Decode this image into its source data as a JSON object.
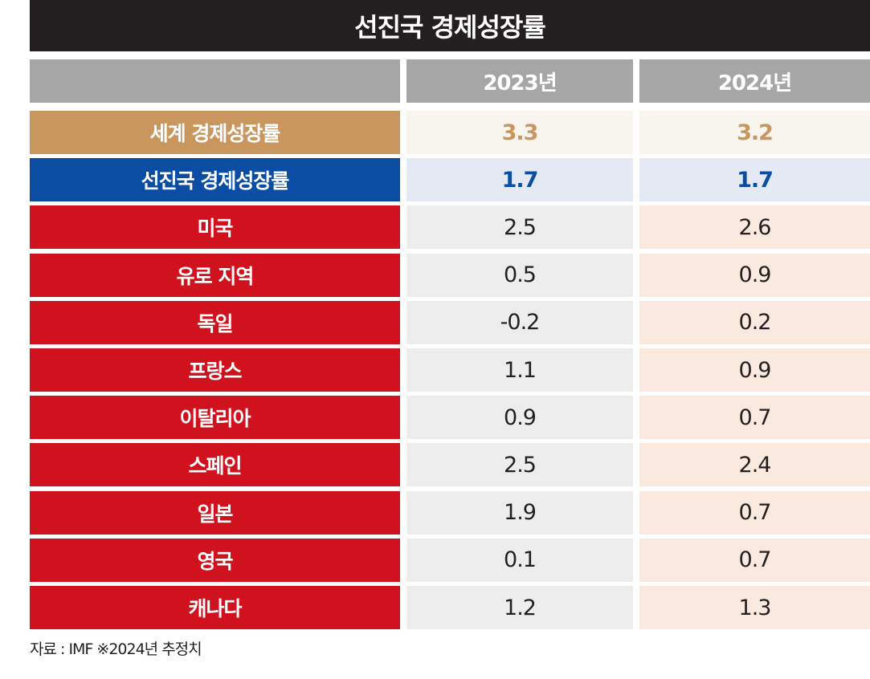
{
  "title": "선진국 경제성장률",
  "source": "자료 : IMF ※2024년 추정치",
  "colors": {
    "title_bg": "#231f20",
    "header_bg": "#a6a6a6",
    "world": "#c9965e",
    "advanced": "#0b4da2",
    "country": "#d0121e"
  },
  "chart_data": {
    "type": "table",
    "title": "선진국 경제성장률",
    "columns": [
      "2023년",
      "2024년"
    ],
    "rows": [
      {
        "label": "세계 경제성장률",
        "group": "world",
        "values": [
          "3.3",
          "3.2"
        ]
      },
      {
        "label": "선진국 경제성장률",
        "group": "advanced",
        "values": [
          "1.7",
          "1.7"
        ]
      },
      {
        "label": "미국",
        "group": "country",
        "values": [
          "2.5",
          "2.6"
        ]
      },
      {
        "label": "유로 지역",
        "group": "country",
        "values": [
          "0.5",
          "0.9"
        ]
      },
      {
        "label": "독일",
        "group": "country",
        "values": [
          "-0.2",
          "0.2"
        ]
      },
      {
        "label": "프랑스",
        "group": "country",
        "values": [
          "1.1",
          "0.9"
        ]
      },
      {
        "label": "이탈리아",
        "group": "country",
        "values": [
          "0.9",
          "0.7"
        ]
      },
      {
        "label": "스페인",
        "group": "country",
        "values": [
          "2.5",
          "2.4"
        ]
      },
      {
        "label": "일본",
        "group": "country",
        "values": [
          "1.9",
          "0.7"
        ]
      },
      {
        "label": "영국",
        "group": "country",
        "values": [
          "0.1",
          "0.7"
        ]
      },
      {
        "label": "캐나다",
        "group": "country",
        "values": [
          "1.2",
          "1.3"
        ]
      }
    ]
  }
}
